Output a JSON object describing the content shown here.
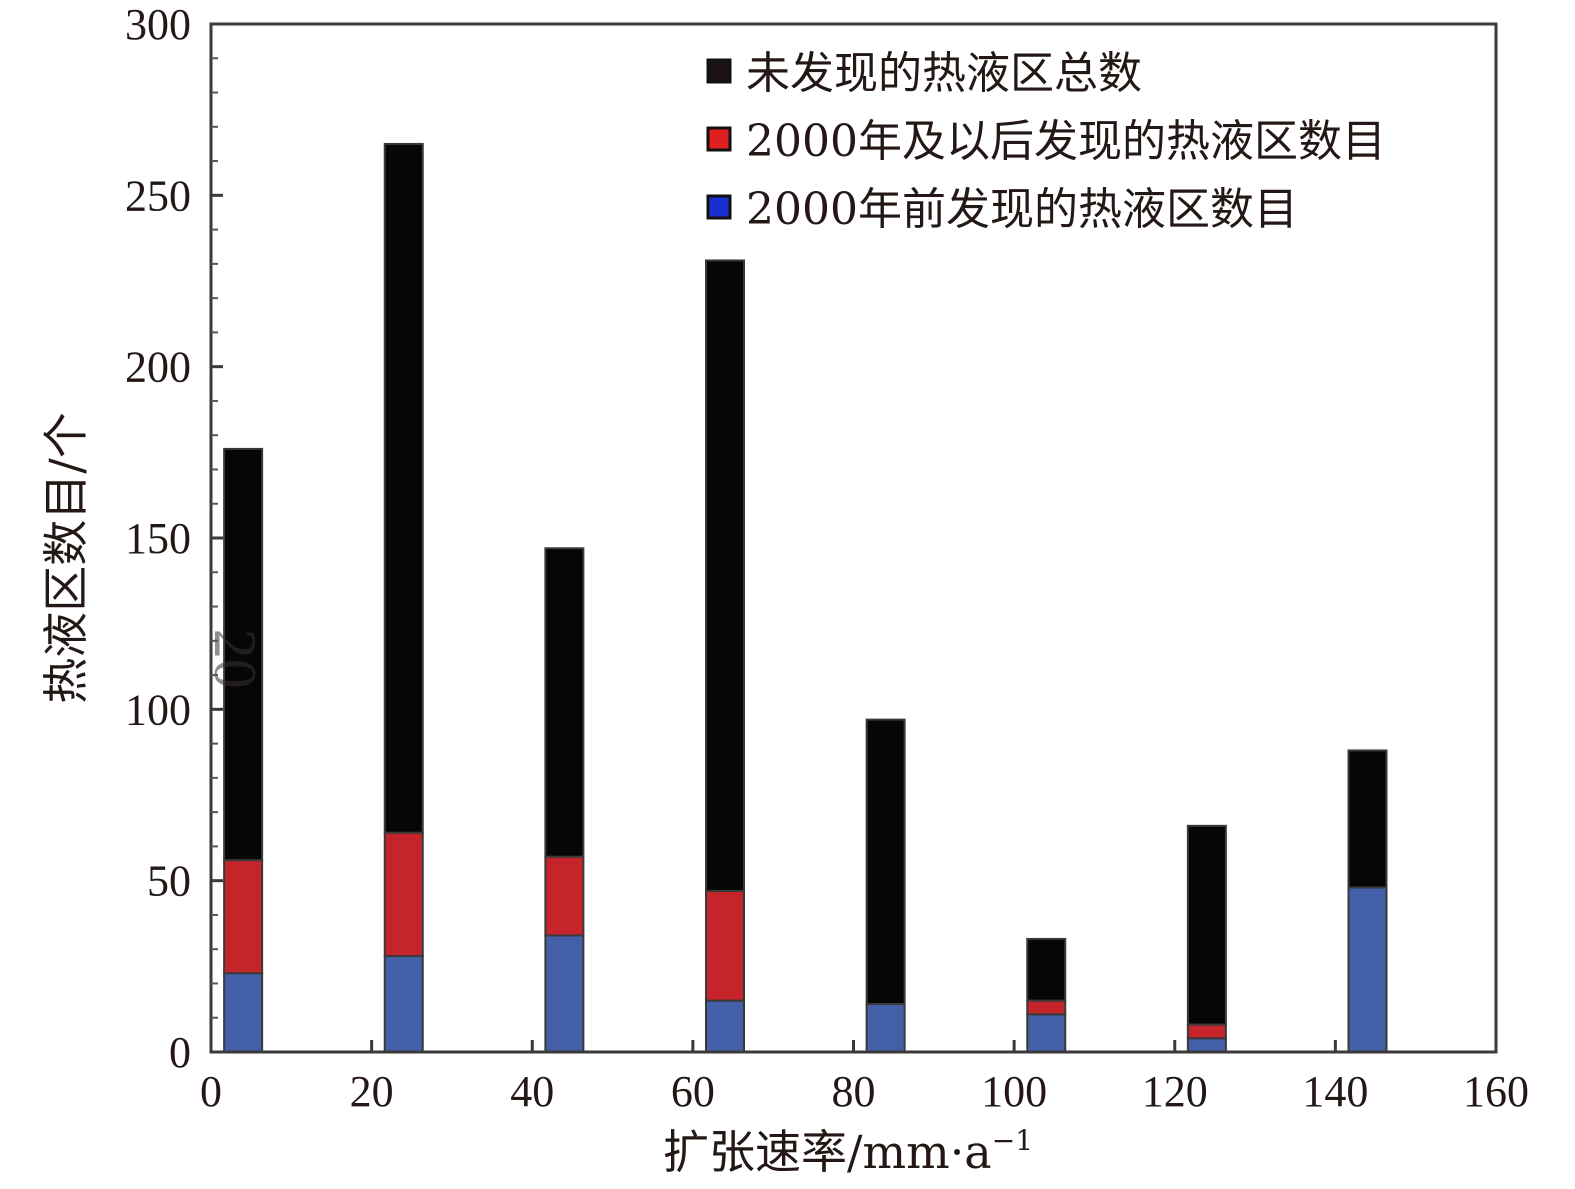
{
  "chart_data": {
    "type": "bar",
    "stacked": true,
    "x": [
      4,
      24,
      44,
      64,
      84,
      104,
      124,
      144
    ],
    "series": [
      {
        "name": "2000年前发现的热液区数目",
        "color": "#4460a8",
        "values": [
          23,
          28,
          34,
          15,
          14,
          11,
          4,
          48
        ]
      },
      {
        "name": "2000年及以后发现的热液区数目",
        "color": "#c4242a",
        "values": [
          33,
          36,
          23,
          32,
          0,
          4,
          4,
          0
        ]
      },
      {
        "name": "未发现的热液区总数",
        "color": "#060606",
        "values": [
          120,
          201,
          90,
          184,
          83,
          18,
          58,
          40
        ]
      }
    ],
    "totals": [
      176,
      265,
      147,
      231,
      97,
      33,
      66,
      88
    ],
    "xlim": [
      0,
      160
    ],
    "ylim": [
      0,
      300
    ],
    "xticks": [
      0,
      20,
      40,
      60,
      80,
      100,
      120,
      140,
      160
    ],
    "yticks": [
      0,
      50,
      100,
      150,
      200,
      250,
      300
    ],
    "xlabel": "扩张速率/mm·a",
    "xlabel_superscript": "−1",
    "ylabel": "热液区数目/个",
    "legend_position": "top-right",
    "legend_order": [
      "未发现的热液区总数",
      "2000年及以后发现的热液区数目",
      "2000年前发现的热液区数目"
    ],
    "legend_swatch_colors": [
      "#1a1212",
      "#e02020",
      "#1a2fd0"
    ],
    "annotation": "20",
    "grid": false
  }
}
